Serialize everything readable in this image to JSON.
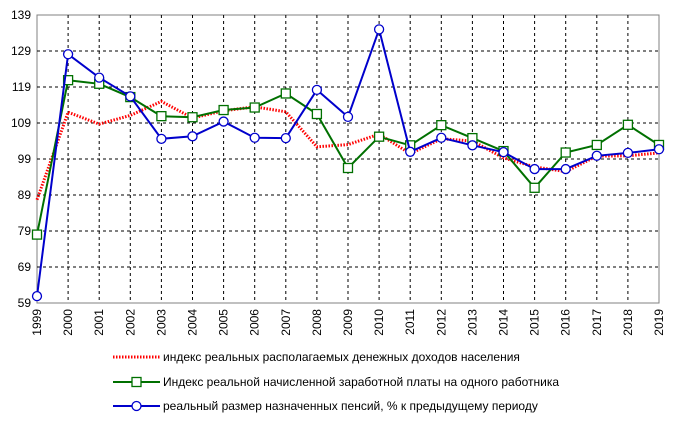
{
  "chart_data": {
    "type": "line",
    "title": "",
    "xlabel": "",
    "ylabel": "",
    "x": [
      "1999",
      "2000",
      "2001",
      "2002",
      "2003",
      "2004",
      "2005",
      "2006",
      "2007",
      "2008",
      "2009",
      "2010",
      "2011",
      "2012",
      "2013",
      "2014",
      "2015",
      "2016",
      "2017",
      "2018",
      "2019"
    ],
    "ylim": [
      59,
      139
    ],
    "yticks": [
      59,
      69,
      79,
      89,
      99,
      109,
      119,
      129,
      139
    ],
    "grid": true,
    "legend_position": "bottom",
    "series": [
      {
        "name": "индекс реальных располагаемых денежных доходов населения",
        "color": "#ff0000",
        "style": "dotted",
        "marker": "none",
        "values": [
          87.7,
          112.0,
          108.7,
          111.1,
          115.0,
          110.4,
          112.4,
          113.5,
          112.1,
          102.4,
          103.0,
          105.9,
          100.5,
          104.6,
          104.0,
          99.3,
          96.8,
          95.5,
          99.8,
          99.9,
          100.7
        ]
      },
      {
        "name": "Индекс реальной начисленной заработной платы на одного работника",
        "color": "#007000",
        "style": "solid",
        "marker": "square",
        "values": [
          78.0,
          120.9,
          119.9,
          116.2,
          110.9,
          110.6,
          112.6,
          113.3,
          117.2,
          111.5,
          96.5,
          105.2,
          102.8,
          108.4,
          104.8,
          101.2,
          91.0,
          100.8,
          102.9,
          108.5,
          102.9
        ]
      },
      {
        "name": "реальный размер назначенных пенсий, % к предыдущему периоду",
        "color": "#0000cc",
        "style": "solid",
        "marker": "circle",
        "values": [
          60.9,
          128.1,
          121.6,
          116.4,
          104.6,
          105.3,
          109.4,
          104.9,
          104.8,
          118.2,
          110.7,
          135.0,
          101.0,
          104.9,
          102.8,
          100.9,
          96.2,
          96.2,
          99.9,
          100.7,
          101.7
        ]
      }
    ]
  }
}
